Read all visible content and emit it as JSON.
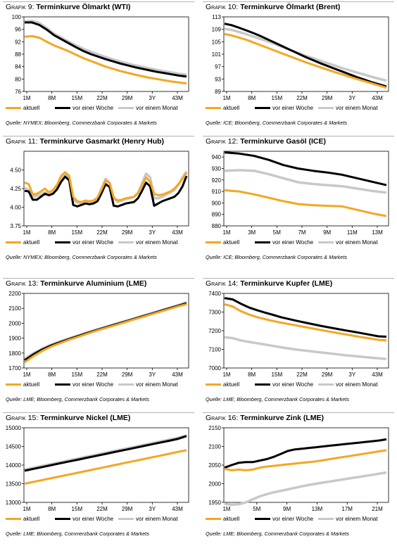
{
  "colors": {
    "aktuell": "#f5a623",
    "woche": "#000000",
    "monat": "#c8c8c8"
  },
  "panels": [
    {
      "label": "Grafik 9:",
      "name": "Terminkurve Ölmarkt (WTI)",
      "source": "Quelle: NYMEX; Bloomberg, Commerzbank Corporates & Markets",
      "legend": [
        "aktuell",
        "vor einer Woche",
        "vor einem Monat"
      ]
    },
    {
      "label": "Grafik 10:",
      "name": "Terminkurve Ölmarkt (Brent)",
      "source": "Quelle: ICE; Bloomberg, Commerzbank Corporates & Markets",
      "legend": [
        "aktuell",
        "vor einer Woche",
        "vor einem Monat"
      ]
    },
    {
      "label": "Grafik 11:",
      "name": "Terminkurve Gasmarkt (Henry Hub)",
      "source": "Quelle: NYMEX; Bloomberg, Commerzbank Corporates & Markets",
      "legend": [
        "aktuell",
        "vor einer Woche",
        "vor einem Monat"
      ]
    },
    {
      "label": "Grafik 12:",
      "name": "Terminkurve Gasöl (ICE)",
      "source": "Quelle: ICE; Bloomberg, Commerzbank Corporates & Markets",
      "legend": [
        "aktuell",
        "vor einer Woche",
        "vor einem Monat"
      ]
    },
    {
      "label": "Grafik 13:",
      "name": "Terminkurve Aluminium (LME)",
      "source": "Quelle: LME; Bloomberg, Commerzbank Corporates & Markets",
      "legend": [
        "aktuell",
        "vor einer Woche",
        "vor einem Monat"
      ]
    },
    {
      "label": "Grafik 14:",
      "name": "Terminkurve Kupfer (LME)",
      "source": "Quelle: LME; Bloomberg, Commerzbank Corporates & Markets",
      "legend": [
        "aktuell",
        "vor einer Woche",
        "vor einem Monat"
      ]
    },
    {
      "label": "Grafik 15:",
      "name": "Terminkurve Nickel (LME)",
      "source": "Quelle: LME; Bloomberg, Commerzbank Corporates & Markets",
      "legend": [
        "aktuell",
        "vor einer Woche",
        "vor einem Monat"
      ]
    },
    {
      "label": "Grafik 16:",
      "name": "Terminkurve Zink (LME)",
      "source": "Quelle: LME; Bloomberg, Commerzbank Corporates & Markets",
      "legend": [
        "aktuell",
        "vor einer Woche",
        "vor einem Monat"
      ]
    }
  ],
  "chart_data": [
    {
      "type": "line",
      "title": "Terminkurve Ölmarkt (WTI)",
      "xticks": [
        "1M",
        "8M",
        "15M",
        "22M",
        "29M",
        "3Y",
        "43M"
      ],
      "yticks": [
        76,
        80,
        84,
        88,
        92,
        96,
        100
      ],
      "ylim": [
        76,
        100
      ],
      "series": [
        {
          "name": "aktuell",
          "values": [
            93.6,
            93.8,
            93.3,
            92.0,
            90.8,
            89.9,
            88.9,
            87.8,
            86.7,
            85.8,
            84.9,
            84.0,
            83.3,
            82.6,
            82.0,
            81.4,
            80.9,
            80.4,
            80.0,
            79.6,
            79.2,
            78.9,
            78.6
          ]
        },
        {
          "name": "vor einer Woche",
          "values": [
            98.2,
            98.2,
            97.4,
            95.9,
            94.1,
            92.8,
            91.5,
            90.2,
            89.0,
            88.0,
            87.2,
            86.4,
            85.7,
            85.0,
            84.4,
            83.8,
            83.3,
            82.8,
            82.3,
            81.9,
            81.5,
            81.1,
            80.8
          ]
        },
        {
          "name": "vor einem Monat",
          "values": [
            98.5,
            98.7,
            98.0,
            96.4,
            94.6,
            93.3,
            92.0,
            90.8,
            89.7,
            88.8,
            87.9,
            87.1,
            86.3,
            85.6,
            85.0,
            84.4,
            83.9,
            83.4,
            82.9,
            82.5,
            82.1,
            81.7,
            81.4
          ]
        }
      ]
    },
    {
      "type": "line",
      "title": "Terminkurve Ölmarkt (Brent)",
      "xticks": [
        "1M",
        "8M",
        "15M",
        "22M",
        "29M",
        "3Y",
        "43M"
      ],
      "yticks": [
        89,
        93,
        97,
        101,
        105,
        109,
        113
      ],
      "ylim": [
        89,
        113
      ],
      "series": [
        {
          "name": "aktuell",
          "values": [
            107.5,
            107.0,
            106.3,
            105.6,
            104.7,
            103.8,
            102.9,
            102.0,
            101.1,
            100.2,
            99.3,
            98.4,
            97.6,
            96.8,
            96.0,
            95.2,
            94.5,
            93.7,
            93.0,
            92.3,
            91.6,
            90.9,
            90.2
          ]
        },
        {
          "name": "vor einer Woche",
          "values": [
            110.8,
            110.3,
            109.5,
            108.6,
            107.7,
            106.7,
            105.6,
            104.5,
            103.4,
            102.3,
            101.2,
            100.1,
            99.1,
            98.1,
            97.2,
            96.3,
            95.4,
            94.5,
            93.6,
            92.8,
            92.0,
            91.3,
            90.6
          ]
        },
        {
          "name": "vor einem Monat",
          "values": [
            109.2,
            108.8,
            108.1,
            107.4,
            106.6,
            105.8,
            105.0,
            104.1,
            103.2,
            102.3,
            101.4,
            100.5,
            99.7,
            98.9,
            98.1,
            97.3,
            96.5,
            95.8,
            95.1,
            94.4,
            93.7,
            93.1,
            92.5
          ]
        }
      ]
    },
    {
      "type": "line",
      "title": "Terminkurve Gasmarkt (Henry Hub)",
      "xticks": [
        "1M",
        "8M",
        "15M",
        "22M",
        "29M",
        "3Y",
        "43M"
      ],
      "yticks": [
        3.75,
        4.0,
        4.25,
        4.5
      ],
      "ylim": [
        3.75,
        4.75
      ],
      "series": [
        {
          "name": "aktuell",
          "values": [
            4.33,
            4.31,
            4.17,
            4.18,
            4.21,
            4.25,
            4.2,
            4.23,
            4.3,
            4.42,
            4.47,
            4.42,
            4.14,
            4.08,
            4.07,
            4.09,
            4.08,
            4.09,
            4.13,
            4.24,
            4.36,
            4.32,
            4.13,
            4.09,
            4.1,
            4.12,
            4.13,
            4.14,
            4.19,
            4.29,
            4.4,
            4.34,
            4.18,
            4.16,
            4.17,
            4.19,
            4.21,
            4.25,
            4.31,
            4.38,
            4.46
          ]
        },
        {
          "name": "vor einer Woche",
          "values": [
            4.22,
            4.21,
            4.1,
            4.1,
            4.14,
            4.18,
            4.16,
            4.18,
            4.24,
            4.34,
            4.41,
            4.36,
            4.03,
            4.01,
            4.03,
            4.05,
            4.04,
            4.05,
            4.08,
            4.19,
            4.31,
            4.27,
            4.02,
            4.01,
            4.03,
            4.05,
            4.06,
            4.07,
            4.12,
            4.22,
            4.33,
            4.28,
            4.02,
            4.05,
            4.08,
            4.1,
            4.12,
            4.14,
            4.19,
            4.28,
            4.42
          ]
        },
        {
          "name": "vor einem Monat",
          "values": [
            4.26,
            4.23,
            4.14,
            4.15,
            4.17,
            4.2,
            4.18,
            4.2,
            4.26,
            4.38,
            4.43,
            4.39,
            4.1,
            4.06,
            4.06,
            4.08,
            4.07,
            4.08,
            4.12,
            4.25,
            4.38,
            4.33,
            4.12,
            4.07,
            4.09,
            4.11,
            4.12,
            4.14,
            4.19,
            4.32,
            4.45,
            4.4,
            4.12,
            4.12,
            4.14,
            4.17,
            4.2,
            4.23,
            4.3,
            4.4,
            4.48
          ]
        }
      ]
    },
    {
      "type": "line",
      "title": "Terminkurve Gasöl (ICE)",
      "xticks": [
        "1M",
        "3M",
        "5M",
        "7M",
        "9M",
        "11M",
        "13M"
      ],
      "yticks": [
        880,
        890,
        900,
        910,
        920,
        930,
        940
      ],
      "ylim": [
        880,
        945
      ],
      "series": [
        {
          "name": "aktuell",
          "values": [
            911,
            910,
            907.5,
            904.5,
            901.5,
            899,
            898,
            897.5,
            897,
            894,
            891,
            888.5
          ]
        },
        {
          "name": "vor einer Woche",
          "values": [
            944,
            943,
            941,
            937.5,
            933,
            930,
            928,
            926.5,
            924.5,
            921.5,
            918.5,
            915.5
          ]
        },
        {
          "name": "vor einem Monat",
          "values": [
            928,
            928.5,
            928,
            925,
            921.5,
            918,
            916.5,
            915.5,
            914.5,
            912.5,
            910.5,
            909
          ]
        }
      ]
    },
    {
      "type": "line",
      "title": "Terminkurve Aluminium (LME)",
      "xticks": [
        "1M",
        "8M",
        "15M",
        "22M",
        "29M",
        "3Y",
        "43M"
      ],
      "yticks": [
        1700,
        1800,
        1900,
        2000,
        2100,
        2200
      ],
      "ylim": [
        1700,
        2200
      ],
      "series": [
        {
          "name": "aktuell",
          "values": [
            1738,
            1780,
            1816,
            1845,
            1868,
            1890,
            1910,
            1930,
            1950,
            1968,
            1986,
            2004,
            2022,
            2040,
            2058,
            2076,
            2094,
            2112,
            2128
          ]
        },
        {
          "name": "vor einer Woche",
          "values": [
            1752,
            1792,
            1825,
            1852,
            1874,
            1895,
            1915,
            1935,
            1954,
            1972,
            1990,
            2008,
            2026,
            2044,
            2062,
            2080,
            2098,
            2116,
            2134
          ]
        },
        {
          "name": "vor einem Monat",
          "values": [
            1762,
            1800,
            1832,
            1858,
            1880,
            1900,
            1919,
            1939,
            1958,
            1976,
            1994,
            2012,
            2030,
            2048,
            2066,
            2084,
            2102,
            2120,
            2140
          ]
        }
      ]
    },
    {
      "type": "line",
      "title": "Terminkurve Kupfer (LME)",
      "xticks": [
        "1M",
        "8M",
        "15M",
        "22M",
        "29M",
        "3Y",
        "43M"
      ],
      "yticks": [
        7000,
        7100,
        7200,
        7300,
        7400
      ],
      "ylim": [
        7000,
        7400
      ],
      "series": [
        {
          "name": "aktuell",
          "values": [
            7342,
            7330,
            7305,
            7287,
            7273,
            7262,
            7252,
            7243,
            7235,
            7227,
            7219,
            7211,
            7203,
            7195,
            7187,
            7180,
            7172,
            7165,
            7158,
            7151,
            7148
          ]
        },
        {
          "name": "vor einer Woche",
          "values": [
            7375,
            7368,
            7345,
            7325,
            7310,
            7297,
            7285,
            7272,
            7262,
            7252,
            7243,
            7234,
            7225,
            7217,
            7209,
            7201,
            7194,
            7186,
            7178,
            7170,
            7168
          ]
        },
        {
          "name": "vor einem Monat",
          "values": [
            7165,
            7160,
            7148,
            7140,
            7133,
            7126,
            7118,
            7111,
            7104,
            7098,
            7093,
            7088,
            7083,
            7078,
            7073,
            7068,
            7064,
            7060,
            7056,
            7052,
            7048
          ]
        }
      ]
    },
    {
      "type": "line",
      "title": "Terminkurve Nickel (LME)",
      "xticks": [
        "1M",
        "8M",
        "15M",
        "22M",
        "29M",
        "3Y",
        "43M"
      ],
      "yticks": [
        13000,
        13500,
        14000,
        14500,
        15000
      ],
      "ylim": [
        13000,
        15000
      ],
      "series": [
        {
          "name": "aktuell",
          "values": [
            13500,
            13550,
            13600,
            13650,
            13700,
            13750,
            13800,
            13850,
            13900,
            13950,
            14000,
            14050,
            14100,
            14150,
            14200,
            14250,
            14300,
            14350,
            14400
          ]
        },
        {
          "name": "vor einer Woche",
          "values": [
            13850,
            13900,
            13950,
            14000,
            14050,
            14100,
            14150,
            14200,
            14250,
            14300,
            14350,
            14400,
            14450,
            14500,
            14550,
            14600,
            14650,
            14700,
            14780
          ]
        },
        {
          "name": "vor einem Monat",
          "values": [
            13880,
            13930,
            13980,
            14030,
            14080,
            14130,
            14180,
            14230,
            14280,
            14330,
            14380,
            14430,
            14480,
            14530,
            14580,
            14630,
            14680,
            14730,
            14790
          ]
        }
      ]
    },
    {
      "type": "line",
      "title": "Terminkurve Zink (LME)",
      "xticks": [
        "1M",
        "5M",
        "9M",
        "13M",
        "17M",
        "21M"
      ],
      "yticks": [
        1950,
        2000,
        2050,
        2100,
        2150
      ],
      "ylim": [
        1950,
        2150
      ],
      "series": [
        {
          "name": "aktuell",
          "values": [
            2040,
            2036,
            2038,
            2036,
            2038,
            2043,
            2046,
            2048,
            2050,
            2052,
            2054,
            2056,
            2058,
            2060,
            2063,
            2066,
            2069,
            2072,
            2075,
            2078,
            2081,
            2084,
            2087,
            2090
          ]
        },
        {
          "name": "vor einer Woche",
          "values": [
            2043,
            2050,
            2056,
            2058,
            2058,
            2062,
            2066,
            2072,
            2080,
            2088,
            2092,
            2094,
            2096,
            2098,
            2100,
            2102,
            2104,
            2106,
            2108,
            2110,
            2112,
            2114,
            2116,
            2119
          ]
        },
        {
          "name": "vor einem Monat",
          "values": [
            1946,
            1944,
            1945,
            1950,
            1958,
            1966,
            1972,
            1977,
            1981,
            1985,
            1989,
            1993,
            1997,
            2000,
            2003,
            2006,
            2009,
            2012,
            2015,
            2018,
            2021,
            2024,
            2027,
            2030
          ]
        }
      ]
    }
  ]
}
